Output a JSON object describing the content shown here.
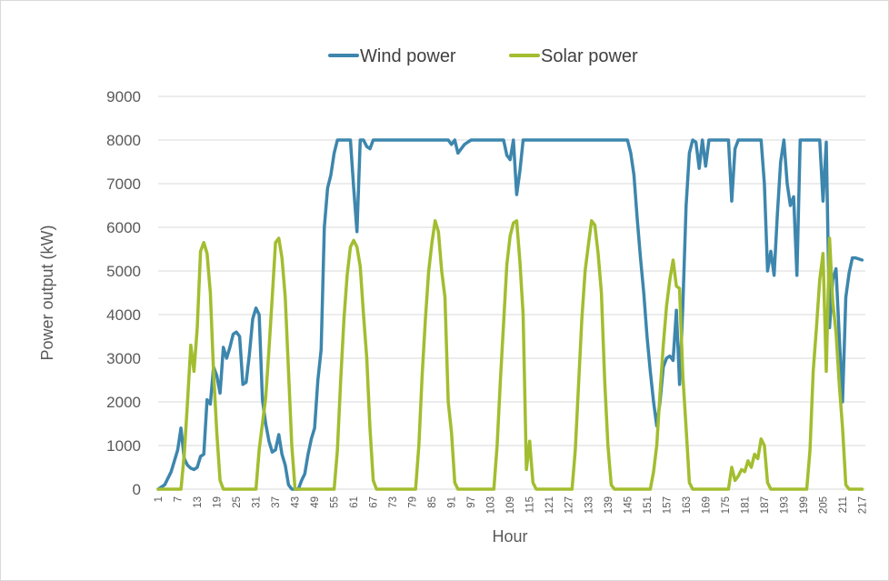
{
  "chart_data": {
    "type": "line",
    "xlabel": "Hour",
    "ylabel": "Power output (kW)",
    "ylim": [
      0,
      9000
    ],
    "yticks": [
      0,
      1000,
      2000,
      3000,
      4000,
      5000,
      6000,
      7000,
      8000,
      9000
    ],
    "xlim": [
      1,
      218
    ],
    "xticks": [
      1,
      7,
      13,
      19,
      25,
      31,
      37,
      43,
      49,
      55,
      61,
      67,
      73,
      79,
      85,
      91,
      97,
      103,
      109,
      115,
      121,
      127,
      133,
      139,
      145,
      151,
      157,
      163,
      169,
      175,
      181,
      187,
      193,
      199,
      205,
      211,
      217
    ],
    "grid": "horizontal",
    "legend": "top",
    "series": [
      {
        "name": "Wind power",
        "color": "#3d86ad",
        "points": [
          [
            1,
            0
          ],
          [
            3,
            100
          ],
          [
            5,
            400
          ],
          [
            7,
            900
          ],
          [
            8,
            1400
          ],
          [
            9,
            700
          ],
          [
            10,
            550
          ],
          [
            11,
            480
          ],
          [
            12,
            450
          ],
          [
            13,
            500
          ],
          [
            14,
            750
          ],
          [
            15,
            800
          ],
          [
            16,
            2050
          ],
          [
            17,
            1950
          ],
          [
            18,
            2800
          ],
          [
            19,
            2600
          ],
          [
            20,
            2200
          ],
          [
            21,
            3250
          ],
          [
            22,
            3000
          ],
          [
            23,
            3250
          ],
          [
            24,
            3550
          ],
          [
            25,
            3600
          ],
          [
            26,
            3500
          ],
          [
            27,
            2400
          ],
          [
            28,
            2450
          ],
          [
            29,
            3100
          ],
          [
            30,
            3900
          ],
          [
            31,
            4150
          ],
          [
            32,
            4000
          ],
          [
            33,
            2050
          ],
          [
            34,
            1500
          ],
          [
            35,
            1100
          ],
          [
            36,
            850
          ],
          [
            37,
            900
          ],
          [
            38,
            1250
          ],
          [
            39,
            800
          ],
          [
            40,
            550
          ],
          [
            41,
            100
          ],
          [
            42,
            0
          ],
          [
            43,
            0
          ],
          [
            44,
            0
          ],
          [
            45,
            200
          ],
          [
            46,
            350
          ],
          [
            47,
            800
          ],
          [
            48,
            1150
          ],
          [
            49,
            1400
          ],
          [
            50,
            2500
          ],
          [
            51,
            3200
          ],
          [
            52,
            6000
          ],
          [
            53,
            6900
          ],
          [
            54,
            7200
          ],
          [
            55,
            7700
          ],
          [
            56,
            8000
          ],
          [
            57,
            8000
          ],
          [
            58,
            8000
          ],
          [
            59,
            8000
          ],
          [
            60,
            8000
          ],
          [
            61,
            6900
          ],
          [
            62,
            5900
          ],
          [
            63,
            8000
          ],
          [
            64,
            8000
          ],
          [
            65,
            7850
          ],
          [
            66,
            7800
          ],
          [
            67,
            8000
          ],
          [
            68,
            8000
          ],
          [
            69,
            8000
          ],
          [
            70,
            8000
          ],
          [
            80,
            8000
          ],
          [
            90,
            8000
          ],
          [
            91,
            7900
          ],
          [
            92,
            8000
          ],
          [
            93,
            7700
          ],
          [
            95,
            7900
          ],
          [
            97,
            8000
          ],
          [
            100,
            8000
          ],
          [
            107,
            8000
          ],
          [
            108,
            7650
          ],
          [
            109,
            7550
          ],
          [
            110,
            8000
          ],
          [
            111,
            6750
          ],
          [
            112,
            7300
          ],
          [
            113,
            8000
          ],
          [
            116,
            8000
          ],
          [
            140,
            8000
          ],
          [
            145,
            8000
          ],
          [
            146,
            7700
          ],
          [
            147,
            7200
          ],
          [
            148,
            6200
          ],
          [
            149,
            5300
          ],
          [
            150,
            4500
          ],
          [
            151,
            3500
          ],
          [
            152,
            2700
          ],
          [
            153,
            2000
          ],
          [
            154,
            1450
          ],
          [
            155,
            2000
          ],
          [
            156,
            2800
          ],
          [
            157,
            3000
          ],
          [
            158,
            3050
          ],
          [
            159,
            2950
          ],
          [
            160,
            4100
          ],
          [
            161,
            2400
          ],
          [
            162,
            4200
          ],
          [
            163,
            6500
          ],
          [
            164,
            7700
          ],
          [
            165,
            8000
          ],
          [
            166,
            7950
          ],
          [
            167,
            7350
          ],
          [
            168,
            8000
          ],
          [
            169,
            7400
          ],
          [
            170,
            8000
          ],
          [
            171,
            8000
          ],
          [
            176,
            8000
          ],
          [
            177,
            6600
          ],
          [
            178,
            7800
          ],
          [
            179,
            8000
          ],
          [
            186,
            8000
          ],
          [
            187,
            7000
          ],
          [
            188,
            5000
          ],
          [
            189,
            5450
          ],
          [
            190,
            4900
          ],
          [
            191,
            6300
          ],
          [
            192,
            7500
          ],
          [
            193,
            8000
          ],
          [
            194,
            7000
          ],
          [
            195,
            6500
          ],
          [
            196,
            6700
          ],
          [
            197,
            4900
          ],
          [
            198,
            8000
          ],
          [
            204,
            8000
          ],
          [
            205,
            6600
          ],
          [
            206,
            7950
          ],
          [
            207,
            3700
          ],
          [
            208,
            4800
          ],
          [
            209,
            5050
          ],
          [
            210,
            3500
          ],
          [
            211,
            2000
          ],
          [
            212,
            4400
          ],
          [
            213,
            4950
          ],
          [
            214,
            5300
          ],
          [
            215,
            5300
          ],
          [
            217,
            5250
          ]
        ]
      },
      {
        "name": "Solar power",
        "color": "#a2bd2f",
        "points": [
          [
            1,
            0
          ],
          [
            7,
            0
          ],
          [
            8,
            0
          ],
          [
            9,
            800
          ],
          [
            10,
            2000
          ],
          [
            11,
            3300
          ],
          [
            12,
            2700
          ],
          [
            13,
            3700
          ],
          [
            14,
            5450
          ],
          [
            15,
            5650
          ],
          [
            16,
            5400
          ],
          [
            17,
            4500
          ],
          [
            18,
            2700
          ],
          [
            19,
            1300
          ],
          [
            20,
            200
          ],
          [
            21,
            0
          ],
          [
            31,
            0
          ],
          [
            32,
            900
          ],
          [
            33,
            1500
          ],
          [
            34,
            2100
          ],
          [
            35,
            3200
          ],
          [
            36,
            4400
          ],
          [
            37,
            5650
          ],
          [
            38,
            5750
          ],
          [
            39,
            5300
          ],
          [
            40,
            4400
          ],
          [
            41,
            2700
          ],
          [
            42,
            1000
          ],
          [
            43,
            0
          ],
          [
            55,
            0
          ],
          [
            56,
            900
          ],
          [
            57,
            2500
          ],
          [
            58,
            3900
          ],
          [
            59,
            4900
          ],
          [
            60,
            5550
          ],
          [
            61,
            5700
          ],
          [
            62,
            5550
          ],
          [
            63,
            5100
          ],
          [
            64,
            4000
          ],
          [
            65,
            3000
          ],
          [
            66,
            1400
          ],
          [
            67,
            200
          ],
          [
            68,
            0
          ],
          [
            80,
            0
          ],
          [
            81,
            1000
          ],
          [
            82,
            2600
          ],
          [
            83,
            3900
          ],
          [
            84,
            5000
          ],
          [
            85,
            5650
          ],
          [
            86,
            6150
          ],
          [
            87,
            5900
          ],
          [
            88,
            5000
          ],
          [
            89,
            4400
          ],
          [
            90,
            2000
          ],
          [
            91,
            1300
          ],
          [
            92,
            150
          ],
          [
            93,
            0
          ],
          [
            104,
            0
          ],
          [
            105,
            1000
          ],
          [
            106,
            2500
          ],
          [
            107,
            3800
          ],
          [
            108,
            5150
          ],
          [
            109,
            5800
          ],
          [
            110,
            6100
          ],
          [
            111,
            6150
          ],
          [
            112,
            5200
          ],
          [
            113,
            4000
          ],
          [
            114,
            450
          ],
          [
            115,
            1100
          ],
          [
            116,
            150
          ],
          [
            117,
            0
          ],
          [
            128,
            0
          ],
          [
            129,
            900
          ],
          [
            130,
            2400
          ],
          [
            131,
            3900
          ],
          [
            132,
            5000
          ],
          [
            133,
            5600
          ],
          [
            134,
            6150
          ],
          [
            135,
            6050
          ],
          [
            136,
            5400
          ],
          [
            137,
            4500
          ],
          [
            138,
            2500
          ],
          [
            139,
            1000
          ],
          [
            140,
            100
          ],
          [
            141,
            0
          ],
          [
            152,
            0
          ],
          [
            153,
            400
          ],
          [
            154,
            1000
          ],
          [
            155,
            2200
          ],
          [
            156,
            3300
          ],
          [
            157,
            4200
          ],
          [
            158,
            4800
          ],
          [
            159,
            5250
          ],
          [
            160,
            4650
          ],
          [
            161,
            4600
          ],
          [
            162,
            2600
          ],
          [
            163,
            1400
          ],
          [
            164,
            150
          ],
          [
            165,
            0
          ],
          [
            176,
            0
          ],
          [
            177,
            500
          ],
          [
            178,
            200
          ],
          [
            179,
            300
          ],
          [
            180,
            450
          ],
          [
            181,
            400
          ],
          [
            182,
            650
          ],
          [
            183,
            500
          ],
          [
            184,
            800
          ],
          [
            185,
            700
          ],
          [
            186,
            1150
          ],
          [
            187,
            1000
          ],
          [
            188,
            150
          ],
          [
            189,
            0
          ],
          [
            200,
            0
          ],
          [
            201,
            900
          ],
          [
            202,
            2700
          ],
          [
            203,
            3700
          ],
          [
            204,
            4800
          ],
          [
            205,
            5400
          ],
          [
            206,
            2700
          ],
          [
            207,
            5750
          ],
          [
            208,
            4300
          ],
          [
            209,
            3600
          ],
          [
            210,
            2400
          ],
          [
            211,
            1400
          ],
          [
            212,
            100
          ],
          [
            213,
            0
          ],
          [
            217,
            0
          ]
        ]
      }
    ]
  }
}
